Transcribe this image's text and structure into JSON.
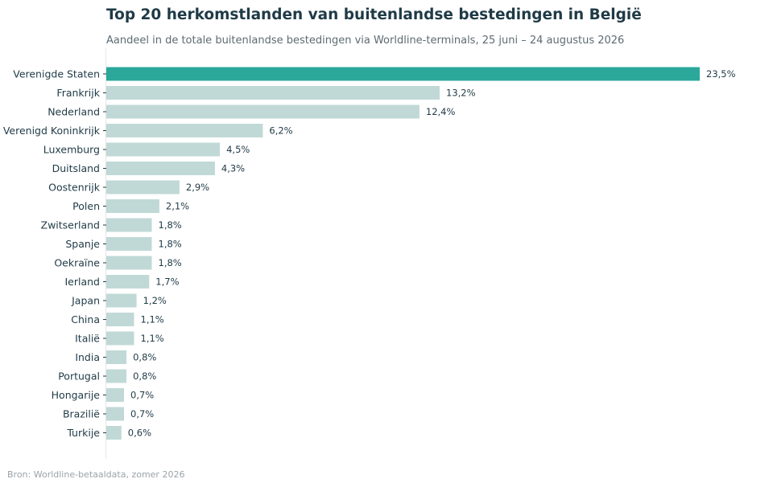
{
  "header": {
    "title": "Top 20 herkomstlanden van buitenlandse bestedingen in België",
    "subtitle": "Aandeel in de totale buitenlandse bestedingen via Worldline-terminals, 25 juni – 24 augustus 2026"
  },
  "footer": {
    "source": "Bron: Worldline-betaaldata, zomer 2026"
  },
  "colors": {
    "highlight": "#2ba89a",
    "bar": "#c0d9d6",
    "text": "#1f3a46",
    "axis": "#e3e7e8"
  },
  "chart_data": {
    "type": "bar",
    "orientation": "horizontal",
    "title": "Top 20 herkomstlanden van buitenlandse bestedingen in België",
    "subtitle": "Aandeel in de totale buitenlandse bestedingen via Worldline-terminals, 25 juni – 24 augustus 2026",
    "xlabel": "",
    "ylabel": "",
    "xlim": [
      0,
      23.5
    ],
    "grid": false,
    "highlight_category": "Verenigde Staten",
    "categories": [
      "Verenigde Staten",
      "Frankrijk",
      "Nederland",
      "Verenigd Koninkrijk",
      "Luxemburg",
      "Duitsland",
      "Oostenrijk",
      "Polen",
      "Zwitserland",
      "Spanje",
      "Oekraïne",
      "Ierland",
      "Japan",
      "China",
      "Italië",
      "India",
      "Portugal",
      "Hongarije",
      "Brazilië",
      "Turkije"
    ],
    "values": [
      23.5,
      13.2,
      12.4,
      6.2,
      4.5,
      4.3,
      2.9,
      2.1,
      1.8,
      1.8,
      1.8,
      1.7,
      1.2,
      1.1,
      1.1,
      0.8,
      0.8,
      0.7,
      0.7,
      0.6
    ],
    "value_labels": [
      "23,5%",
      "13,2%",
      "12,4%",
      "6,2%",
      "4,5%",
      "4,3%",
      "2,9%",
      "2,1%",
      "1,8%",
      "1,8%",
      "1,8%",
      "1,7%",
      "1,2%",
      "1,1%",
      "1,1%",
      "0,8%",
      "0,8%",
      "0,7%",
      "0,7%",
      "0,6%"
    ]
  }
}
